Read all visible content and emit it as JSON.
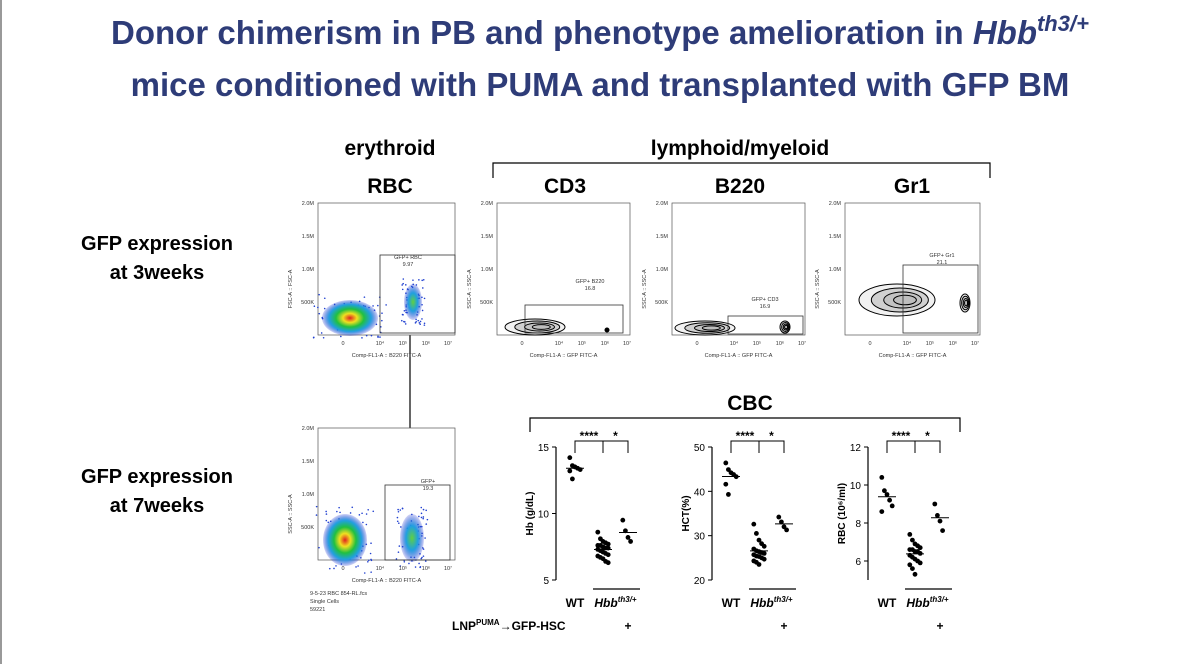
{
  "title": {
    "line1": "Donor chimerism in PB and phenotype amelioration in ",
    "gene": "Hbb",
    "gene_sup": "th3/+",
    "line2": "mice conditioned with PUMA and transplanted with GFP BM"
  },
  "headers": {
    "erythroid": "erythroid",
    "lymphoid_myeloid": "lymphoid/myeloid",
    "columns": [
      "RBC",
      "CD3",
      "B220",
      "Gr1"
    ]
  },
  "rows": [
    {
      "label": [
        "GFP expression",
        "at 3weeks"
      ]
    },
    {
      "label": [
        "GFP expression",
        "at 7weeks"
      ]
    }
  ],
  "flow_plots": [
    {
      "y_label": "FSC-A :: FSC-A",
      "x_label": "Comp-FL1-A :: B220 FITC-A",
      "yticks": [
        "2.0M",
        "1.5M",
        "1.0M",
        "500K"
      ],
      "xticks": [
        "0",
        "10⁴",
        "10⁵",
        "10⁶",
        "10⁷"
      ],
      "gate_name": "GFP+ RBC",
      "gate_value": "9.97"
    },
    {
      "y_label": "SSC-A :: SSC-A",
      "x_label": "Comp-FL1-A :: GFP FITC-A",
      "yticks": [
        "2.0M",
        "1.5M",
        "1.0M",
        "500K"
      ],
      "xticks": [
        "0",
        "10⁴",
        "10⁵",
        "10⁶",
        "10⁷"
      ],
      "gate_name": "GFP+ B220",
      "gate_value": "16.8"
    },
    {
      "y_label": "SSC-A :: SSC-A",
      "x_label": "Comp-FL1-A :: GFP FITC-A",
      "yticks": [
        "2.0M",
        "1.5M",
        "1.0M",
        "500K"
      ],
      "xticks": [
        "0",
        "10⁴",
        "10⁵",
        "10⁶",
        "10⁷"
      ],
      "gate_name": "GFP+ CD3",
      "gate_value": "16.9"
    },
    {
      "y_label": "SSC-A :: SSC-A",
      "x_label": "Comp-FL1-A :: GFP FITC-A",
      "yticks": [
        "2.0M",
        "1.5M",
        "1.0M",
        "500K"
      ],
      "xticks": [
        "0",
        "10⁴",
        "10⁵",
        "10⁶",
        "10⁷"
      ],
      "gate_name": "GFP+ Gr1",
      "gate_value": "21.1"
    },
    {
      "y_label": "SSC-A :: SSC-A",
      "x_label": "Comp-FL1-A :: B220 FITC-A",
      "yticks": [
        "2.0M",
        "1.5M",
        "1.0M",
        "500K"
      ],
      "xticks": [
        "0",
        "10⁴",
        "10⁵",
        "10⁶",
        "10⁷"
      ],
      "gate_name": "GFP+",
      "gate_value": "19.3",
      "file_info": [
        "9-5-23 RBC 854-RL.fcs",
        "Single Cells",
        "59221"
      ]
    }
  ],
  "cbc": {
    "title": "CBC",
    "group_label": "Hbb",
    "group_sup": "th3/+",
    "treatment": {
      "text": "LNP",
      "sup": "PUMA",
      "rest": "→GFP-HSC"
    }
  },
  "chart_data": [
    {
      "type": "strip",
      "y_label": "Hb (g/dL)",
      "ylim": [
        5,
        15
      ],
      "yticks": [
        5,
        10,
        15
      ],
      "categories": [
        "WT",
        null,
        null
      ],
      "color": "#000000",
      "values": [
        [
          14.2,
          13.6,
          13.5,
          13.4,
          13.3,
          13.2,
          12.6
        ],
        [
          8.6,
          8.1,
          7.9,
          7.8,
          7.7,
          7.6,
          7.6,
          7.5,
          7.4,
          7.4,
          7.3,
          7.2,
          7.1,
          7.0,
          6.9,
          6.8,
          6.7,
          6.6,
          6.4,
          6.3
        ],
        [
          9.5,
          8.7,
          8.2,
          7.9
        ]
      ],
      "treatment_marks": [
        null,
        null,
        "+"
      ],
      "significance": [
        "****",
        "*"
      ]
    },
    {
      "type": "strip",
      "y_label": "HCT(%)",
      "ylim": [
        20,
        50
      ],
      "yticks": [
        20,
        30,
        40,
        50
      ],
      "categories": [
        "WT",
        null,
        null
      ],
      "color": "#000000",
      "values": [
        [
          46.4,
          44.9,
          44.2,
          43.8,
          43.3,
          41.6,
          39.3
        ],
        [
          32.6,
          30.5,
          29.0,
          28.2,
          27.6,
          27.0,
          26.6,
          26.4,
          26.2,
          26.0,
          25.7,
          25.4,
          25.3,
          25.0,
          24.7,
          24.3,
          24.0,
          23.5
        ],
        [
          34.2,
          33.1,
          32.0,
          31.3
        ]
      ],
      "treatment_marks": [
        null,
        null,
        "+"
      ],
      "significance": [
        "****",
        "*"
      ]
    },
    {
      "type": "strip",
      "y_label": "RBC (10⁶/ml)",
      "ylim": [
        5,
        12
      ],
      "yticks": [
        6,
        8,
        10,
        12
      ],
      "categories": [
        "WT",
        null,
        null
      ],
      "color": "#000000",
      "values": [
        [
          10.4,
          9.7,
          9.5,
          9.2,
          8.9,
          8.6
        ],
        [
          7.4,
          7.1,
          6.9,
          6.8,
          6.7,
          6.6,
          6.6,
          6.5,
          6.5,
          6.4,
          6.3,
          6.2,
          6.1,
          6.0,
          5.9,
          5.8,
          5.6,
          5.3
        ],
        [
          9.0,
          8.4,
          8.1,
          7.6
        ]
      ],
      "treatment_marks": [
        null,
        null,
        "+"
      ],
      "significance": [
        "****",
        "*"
      ]
    }
  ]
}
